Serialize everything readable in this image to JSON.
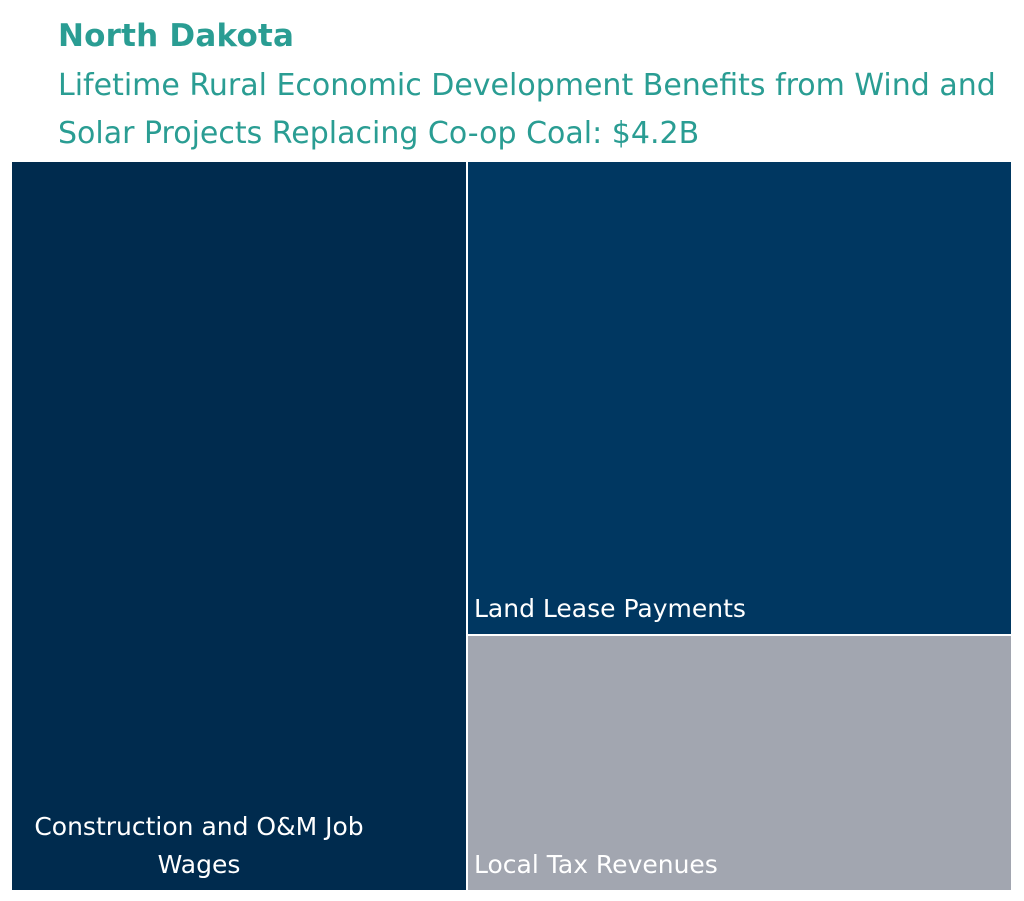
{
  "chart_data": {
    "type": "treemap",
    "title": "North Dakota",
    "subtitle": "Lifetime Rural Economic Development Benefits from Wind and Solar Projects Replacing Co-op Coal: $4.2B",
    "total_label": "$4.2B",
    "total": 4.2,
    "unit": "$B",
    "values_estimated_from_tile_area": true,
    "items": [
      {
        "label": "Construction and O&M Job Wages",
        "value": 1.91,
        "color": "#002b4e"
      },
      {
        "label": "Land Lease Payments",
        "value": 1.49,
        "color": "#003761"
      },
      {
        "label": "Local Tax Revenues",
        "value": 0.8,
        "color": "#a2a6b0"
      }
    ]
  }
}
